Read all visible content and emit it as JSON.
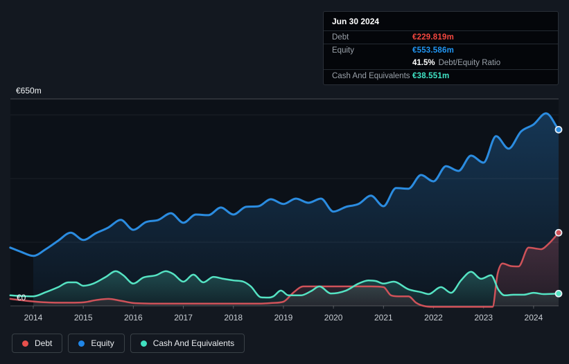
{
  "tooltip": {
    "date": "Jun 30 2024",
    "rows": [
      {
        "label": "Debt",
        "value": "€229.819m",
        "color": "#f4473f"
      },
      {
        "label": "Equity",
        "value": "€553.586m",
        "color": "#2196f3"
      },
      {
        "label": "Cash And Equivalents",
        "value": "€38.551m",
        "color": "#40e4c5"
      }
    ],
    "ratio_value": "41.5%",
    "ratio_label": "Debt/Equity Ratio"
  },
  "axis": {
    "y_top_label": "€650m",
    "y_zero_label": "€0"
  },
  "legend": {
    "items": [
      {
        "label": "Debt",
        "color": "#e8504c"
      },
      {
        "label": "Equity",
        "color": "#2086e8"
      },
      {
        "label": "Cash And Equivalents",
        "color": "#40e0c0"
      }
    ]
  },
  "chart_data": {
    "type": "area",
    "title": "Debt to Equity History",
    "x_ticks": [
      "2014",
      "2015",
      "2016",
      "2017",
      "2018",
      "2019",
      "2020",
      "2021",
      "2022",
      "2023",
      "2024"
    ],
    "x_range": [
      2013.54,
      2024.5
    ],
    "ylim": [
      0,
      650
    ],
    "y_unit": "€m",
    "gridline_values": [
      650,
      600,
      400,
      200,
      0
    ],
    "legend_position": "bottom-left",
    "hover_point": {
      "date": "Jun 30 2024",
      "debt_m": 229.819,
      "equity_m": 553.586,
      "cash_m": 38.551,
      "debt_equity_ratio_pct": 41.5
    },
    "series": [
      {
        "name": "Equity",
        "color": "#2b8ce0",
        "line_width": 3,
        "fill_from": 2014,
        "fill_top": "rgba(43,140,224,0.30)",
        "fill_bottom": "rgba(43,140,224,0.04)",
        "points": [
          [
            2013.54,
            183
          ],
          [
            2013.75,
            170
          ],
          [
            2014,
            157
          ],
          [
            2014.25,
            178
          ],
          [
            2014.5,
            205
          ],
          [
            2014.75,
            230
          ],
          [
            2015,
            207
          ],
          [
            2015.25,
            228
          ],
          [
            2015.5,
            246
          ],
          [
            2015.75,
            270
          ],
          [
            2016,
            239
          ],
          [
            2016.25,
            263
          ],
          [
            2016.5,
            270
          ],
          [
            2016.75,
            291
          ],
          [
            2017,
            261
          ],
          [
            2017.25,
            287
          ],
          [
            2017.5,
            285
          ],
          [
            2017.75,
            309
          ],
          [
            2018,
            287
          ],
          [
            2018.25,
            311
          ],
          [
            2018.5,
            313
          ],
          [
            2018.75,
            335
          ],
          [
            2019,
            320
          ],
          [
            2019.25,
            337
          ],
          [
            2019.5,
            324
          ],
          [
            2019.75,
            337
          ],
          [
            2020,
            296
          ],
          [
            2020.25,
            311
          ],
          [
            2020.5,
            320
          ],
          [
            2020.75,
            346
          ],
          [
            2021,
            313
          ],
          [
            2021.25,
            370
          ],
          [
            2021.5,
            368
          ],
          [
            2021.75,
            411
          ],
          [
            2022,
            391
          ],
          [
            2022.25,
            439
          ],
          [
            2022.5,
            424
          ],
          [
            2022.75,
            472
          ],
          [
            2023,
            450
          ],
          [
            2023.25,
            533
          ],
          [
            2023.5,
            494
          ],
          [
            2023.75,
            548
          ],
          [
            2024,
            570
          ],
          [
            2024.25,
            605
          ],
          [
            2024.5,
            553.586
          ]
        ]
      },
      {
        "name": "Debt",
        "color": "#cf5259",
        "line_width": 2.5,
        "fill_from": 2014,
        "fill_top": "rgba(219,84,92,0.26)",
        "fill_bottom": "rgba(219,84,92,0.10)",
        "points": [
          [
            2013.54,
            22
          ],
          [
            2013.75,
            18
          ],
          [
            2014,
            14
          ],
          [
            2014.25,
            11
          ],
          [
            2014.5,
            10
          ],
          [
            2014.75,
            10
          ],
          [
            2015,
            11
          ],
          [
            2015.25,
            18
          ],
          [
            2015.5,
            22
          ],
          [
            2015.75,
            16
          ],
          [
            2016,
            9
          ],
          [
            2016.5,
            7
          ],
          [
            2017,
            7
          ],
          [
            2017.5,
            7
          ],
          [
            2018,
            7
          ],
          [
            2018.5,
            7
          ],
          [
            2018.75,
            9
          ],
          [
            2019,
            13
          ],
          [
            2019.2,
            42
          ],
          [
            2019.4,
            61
          ],
          [
            2019.75,
            61
          ],
          [
            2020.25,
            61
          ],
          [
            2020.75,
            61
          ],
          [
            2021,
            59
          ],
          [
            2021.15,
            33
          ],
          [
            2021.3,
            30
          ],
          [
            2021.5,
            30
          ],
          [
            2021.65,
            10
          ],
          [
            2021.8,
            0
          ],
          [
            2022,
            -3
          ],
          [
            2022.5,
            -3
          ],
          [
            2023,
            -3
          ],
          [
            2023.18,
            -3
          ],
          [
            2023.28,
            100
          ],
          [
            2023.38,
            133
          ],
          [
            2023.55,
            125
          ],
          [
            2023.7,
            124
          ],
          [
            2023.9,
            183
          ],
          [
            2024.05,
            180
          ],
          [
            2024.15,
            178
          ],
          [
            2024.3,
            195
          ],
          [
            2024.5,
            229.819
          ]
        ]
      },
      {
        "name": "Cash And Equivalents",
        "color": "#55e3c3",
        "line_width": 2.5,
        "fill_from": 2014,
        "fill_top": "rgba(85,227,195,0.24)",
        "fill_bottom": "rgba(85,227,195,0.06)",
        "points": [
          [
            2013.54,
            33
          ],
          [
            2013.75,
            31
          ],
          [
            2014,
            30
          ],
          [
            2014.25,
            43
          ],
          [
            2014.5,
            59
          ],
          [
            2014.7,
            74
          ],
          [
            2014.85,
            74
          ],
          [
            2015,
            63
          ],
          [
            2015.2,
            70
          ],
          [
            2015.45,
            91
          ],
          [
            2015.65,
            109
          ],
          [
            2015.8,
            96
          ],
          [
            2016,
            70
          ],
          [
            2016.2,
            89
          ],
          [
            2016.45,
            96
          ],
          [
            2016.65,
            109
          ],
          [
            2016.8,
            100
          ],
          [
            2017,
            76
          ],
          [
            2017.2,
            98
          ],
          [
            2017.4,
            74
          ],
          [
            2017.6,
            91
          ],
          [
            2017.8,
            85
          ],
          [
            2018,
            80
          ],
          [
            2018.2,
            76
          ],
          [
            2018.35,
            61
          ],
          [
            2018.55,
            27
          ],
          [
            2018.7,
            26
          ],
          [
            2018.8,
            30
          ],
          [
            2018.95,
            48
          ],
          [
            2019.1,
            33
          ],
          [
            2019.35,
            33
          ],
          [
            2019.55,
            46
          ],
          [
            2019.72,
            61
          ],
          [
            2019.95,
            39
          ],
          [
            2020.25,
            48
          ],
          [
            2020.5,
            70
          ],
          [
            2020.7,
            80
          ],
          [
            2020.85,
            78
          ],
          [
            2021,
            70
          ],
          [
            2021.2,
            76
          ],
          [
            2021.5,
            52
          ],
          [
            2021.75,
            43
          ],
          [
            2021.9,
            37
          ],
          [
            2022.15,
            59
          ],
          [
            2022.35,
            41
          ],
          [
            2022.55,
            80
          ],
          [
            2022.75,
            107
          ],
          [
            2022.95,
            85
          ],
          [
            2023.15,
            96
          ],
          [
            2023.3,
            50
          ],
          [
            2023.42,
            33
          ],
          [
            2023.6,
            35
          ],
          [
            2023.8,
            35
          ],
          [
            2024,
            41
          ],
          [
            2024.2,
            37
          ],
          [
            2024.5,
            38.551
          ]
        ]
      }
    ]
  }
}
